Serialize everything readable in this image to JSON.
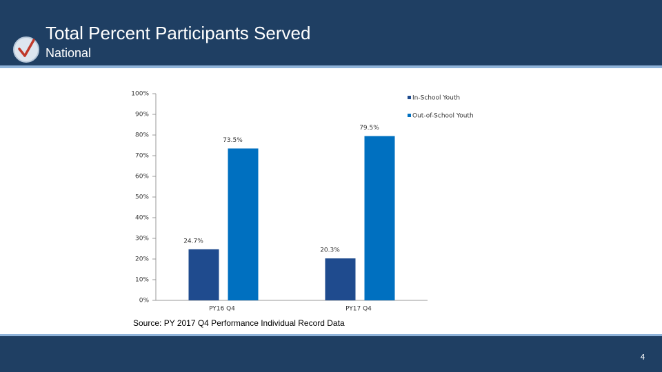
{
  "header": {
    "title": "Total Percent Participants Served",
    "subtitle": "National"
  },
  "chart_data": {
    "type": "bar",
    "categories": [
      "PY16 Q4",
      "PY17 Q4"
    ],
    "series": [
      {
        "name": "In-School Youth",
        "color": "#1f4b8e",
        "values": [
          24.7,
          20.3
        ],
        "value_labels": [
          "24.7%",
          "20.3%"
        ]
      },
      {
        "name": "Out-of-School Youth",
        "color": "#0070c0",
        "values": [
          73.5,
          79.5
        ],
        "value_labels": [
          "73.5%",
          "79.5%"
        ]
      }
    ],
    "ylim": [
      0,
      100
    ],
    "yticks": [
      {
        "value": 0,
        "label": "0%"
      },
      {
        "value": 10,
        "label": "10%"
      },
      {
        "value": 20,
        "label": "20%"
      },
      {
        "value": 30,
        "label": "30%"
      },
      {
        "value": 40,
        "label": "40%"
      },
      {
        "value": 50,
        "label": "50%"
      },
      {
        "value": 60,
        "label": "60%"
      },
      {
        "value": 70,
        "label": "70%"
      },
      {
        "value": 80,
        "label": "80%"
      },
      {
        "value": 90,
        "label": "90%"
      },
      {
        "value": 100,
        "label": "100%"
      }
    ],
    "legend": "top-right"
  },
  "source": "Source: PY 2017 Q4 Performance Individual Record Data",
  "page_number": 4
}
